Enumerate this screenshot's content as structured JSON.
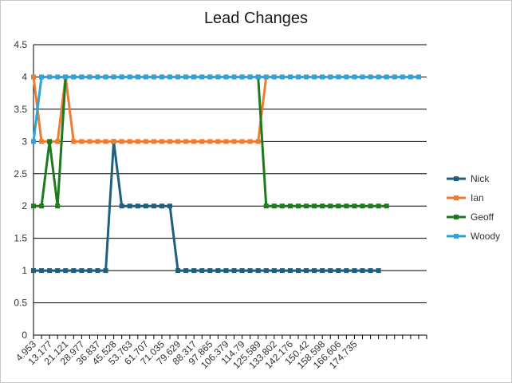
{
  "chart_data": {
    "type": "line",
    "title": "Lead Changes",
    "xlabel": "",
    "ylabel": "",
    "ylim": [
      0,
      4.5
    ],
    "yticks": [
      "0",
      "0.5",
      "1",
      "1.5",
      "2",
      "2.5",
      "3",
      "3.5",
      "4",
      "4.5"
    ],
    "xtick_labels": [
      "4.953",
      "13.177",
      "21.121",
      "28.977",
      "36.837",
      "45.528",
      "53.763",
      "61.707",
      "71.035",
      "79.629",
      "88.317",
      "97.865",
      "106.379",
      "114.79",
      "125.589",
      "133.802",
      "142.176",
      "150.42",
      "158.598",
      "166.606",
      "174.735"
    ],
    "grid": "horizontal",
    "legend_position": "right",
    "colors": {
      "Nick": "#1f5f7f",
      "Ian": "#ed7d31",
      "Geoff": "#1e7a1e",
      "Woody": "#2ea3dc"
    },
    "series": [
      {
        "name": "Nick",
        "values": [
          1,
          1,
          1,
          1,
          1,
          1,
          1,
          1,
          1,
          1,
          3,
          2,
          2,
          2,
          2,
          2,
          2,
          2,
          1,
          1,
          1,
          1,
          1,
          1,
          1,
          1,
          1,
          1,
          1,
          1,
          1,
          1,
          1,
          1,
          1,
          1,
          1,
          1,
          1,
          1,
          1,
          1,
          1,
          1
        ]
      },
      {
        "name": "Ian",
        "values": [
          4,
          3,
          3,
          3,
          4,
          3,
          3,
          3,
          3,
          3,
          3,
          3,
          3,
          3,
          3,
          3,
          3,
          3,
          3,
          3,
          3,
          3,
          3,
          3,
          3,
          3,
          3,
          3,
          3,
          4,
          4,
          4,
          4,
          4,
          4,
          4,
          4,
          4,
          4,
          4,
          4,
          4,
          4,
          4,
          4,
          4,
          4,
          4,
          4
        ]
      },
      {
        "name": "Geoff",
        "values": [
          2,
          2,
          3,
          2,
          4,
          4,
          4,
          4,
          4,
          4,
          4,
          4,
          4,
          4,
          4,
          4,
          4,
          4,
          4,
          4,
          4,
          4,
          4,
          4,
          4,
          4,
          4,
          4,
          4,
          2,
          2,
          2,
          2,
          2,
          2,
          2,
          2,
          2,
          2,
          2,
          2,
          2,
          2,
          2,
          2
        ]
      },
      {
        "name": "Woody",
        "values": [
          3,
          4,
          4,
          4,
          4,
          4,
          4,
          4,
          4,
          4,
          4,
          4,
          4,
          4,
          4,
          4,
          4,
          4,
          4,
          4,
          4,
          4,
          4,
          4,
          4,
          4,
          4,
          4,
          4,
          4,
          4,
          4,
          4,
          4,
          4,
          4,
          4,
          4,
          4,
          4,
          4,
          4,
          4,
          4,
          4,
          4,
          4,
          4,
          4
        ]
      }
    ]
  }
}
